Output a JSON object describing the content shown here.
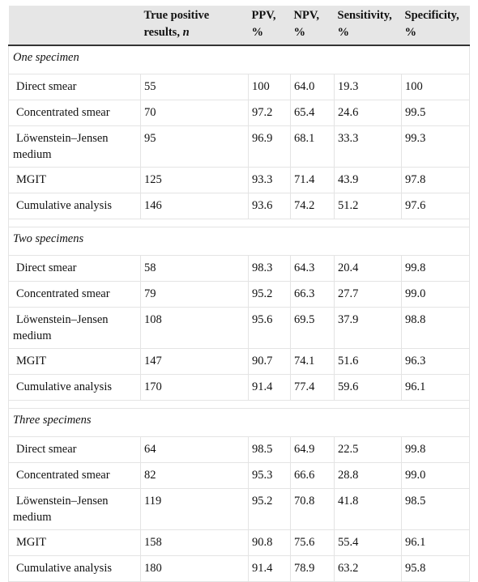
{
  "headers": [
    {
      "main": "",
      "italic": ""
    },
    {
      "main": "True positive results, ",
      "italic": "n"
    },
    {
      "main": "PPV, %",
      "italic": ""
    },
    {
      "main": "NPV, %",
      "italic": ""
    },
    {
      "main": "Sensitivity, %",
      "italic": ""
    },
    {
      "main": "Specificity, %",
      "italic": ""
    }
  ],
  "sections": [
    {
      "title": "One specimen",
      "rows": [
        {
          "label": "Direct smear",
          "tp": "55",
          "ppv": "100",
          "npv": "64.0",
          "sens": "19.3",
          "spec": "100"
        },
        {
          "label": "Concentrated smear",
          "tp": "70",
          "ppv": "97.2",
          "npv": "65.4",
          "sens": "24.6",
          "spec": "99.5"
        },
        {
          "label": "Löwenstein–Jensen medium",
          "tp": "95",
          "ppv": "96.9",
          "npv": "68.1",
          "sens": "33.3",
          "spec": "99.3"
        },
        {
          "label": "MGIT",
          "tp": "125",
          "ppv": "93.3",
          "npv": "71.4",
          "sens": "43.9",
          "spec": "97.8"
        },
        {
          "label": "Cumulative analysis",
          "tp": "146",
          "ppv": "93.6",
          "npv": "74.2",
          "sens": "51.2",
          "spec": "97.6"
        }
      ]
    },
    {
      "title": "Two specimens",
      "rows": [
        {
          "label": "Direct smear",
          "tp": "58",
          "ppv": "98.3",
          "npv": "64.3",
          "sens": "20.4",
          "spec": "99.8"
        },
        {
          "label": "Concentrated smear",
          "tp": "79",
          "ppv": "95.2",
          "npv": "66.3",
          "sens": "27.7",
          "spec": "99.0"
        },
        {
          "label": "Löwenstein–Jensen medium",
          "tp": "108",
          "ppv": "95.6",
          "npv": "69.5",
          "sens": "37.9",
          "spec": "98.8"
        },
        {
          "label": "MGIT",
          "tp": "147",
          "ppv": "90.7",
          "npv": "74.1",
          "sens": "51.6",
          "spec": "96.3"
        },
        {
          "label": "Cumulative analysis",
          "tp": "170",
          "ppv": "91.4",
          "npv": "77.4",
          "sens": "59.6",
          "spec": "96.1"
        }
      ]
    },
    {
      "title": "Three specimens",
      "rows": [
        {
          "label": "Direct smear",
          "tp": "64",
          "ppv": "98.5",
          "npv": "64.9",
          "sens": "22.5",
          "spec": "99.8"
        },
        {
          "label": "Concentrated smear",
          "tp": "82",
          "ppv": "95.3",
          "npv": "66.6",
          "sens": "28.8",
          "spec": "99.0"
        },
        {
          "label": "Löwenstein–Jensen medium",
          "tp": "119",
          "ppv": "95.2",
          "npv": "70.8",
          "sens": "41.8",
          "spec": "98.5"
        },
        {
          "label": "MGIT",
          "tp": "158",
          "ppv": "90.8",
          "npv": "75.6",
          "sens": "55.4",
          "spec": "96.1"
        },
        {
          "label": "Cumulative analysis",
          "tp": "180",
          "ppv": "91.4",
          "npv": "78.9",
          "sens": "63.2",
          "spec": "95.8"
        }
      ]
    }
  ]
}
